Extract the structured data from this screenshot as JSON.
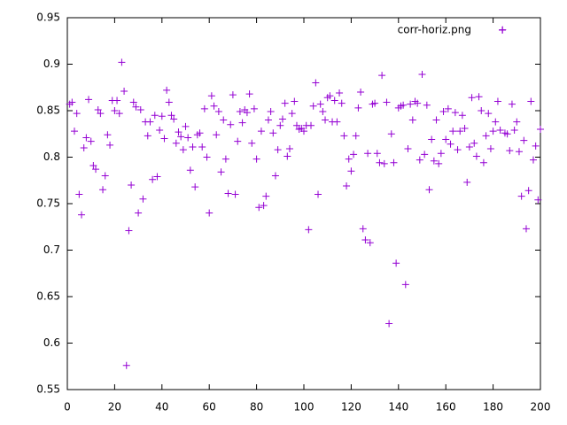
{
  "chart_data": {
    "type": "scatter",
    "legend_position": "top-right",
    "xlim": [
      0,
      200
    ],
    "ylim": [
      0.55,
      0.95
    ],
    "xticks": [
      0,
      20,
      40,
      60,
      80,
      100,
      120,
      140,
      160,
      180,
      200
    ],
    "yticks": [
      0.55,
      0.6,
      0.65,
      0.7,
      0.75,
      0.8,
      0.85,
      0.9,
      0.95
    ],
    "series": [
      {
        "name": "corr-horiz.png",
        "color": "#9400d3",
        "x": [
          1,
          2,
          3,
          4,
          5,
          6,
          7,
          8,
          9,
          10,
          11,
          12,
          13,
          14,
          15,
          16,
          17,
          18,
          19,
          20,
          21,
          22,
          23,
          24,
          25,
          26,
          27,
          28,
          29,
          30,
          31,
          32,
          33,
          34,
          35,
          36,
          37,
          38,
          39,
          40,
          41,
          42,
          43,
          44,
          45,
          46,
          47,
          48,
          49,
          50,
          51,
          52,
          53,
          54,
          55,
          56,
          57,
          58,
          59,
          60,
          61,
          62,
          63,
          64,
          65,
          66,
          67,
          68,
          69,
          70,
          71,
          72,
          73,
          74,
          75,
          76,
          77,
          78,
          79,
          80,
          81,
          82,
          83,
          84,
          85,
          86,
          87,
          88,
          89,
          90,
          91,
          92,
          93,
          94,
          95,
          96,
          97,
          98,
          99,
          100,
          101,
          102,
          103,
          104,
          105,
          106,
          107,
          108,
          109,
          110,
          111,
          112,
          113,
          114,
          115,
          116,
          117,
          118,
          119,
          120,
          121,
          122,
          123,
          124,
          125,
          126,
          127,
          128,
          129,
          130,
          131,
          132,
          133,
          134,
          135,
          136,
          137,
          138,
          139,
          140,
          141,
          142,
          143,
          144,
          145,
          146,
          147,
          148,
          149,
          150,
          151,
          152,
          153,
          154,
          155,
          156,
          157,
          158,
          159,
          160,
          161,
          162,
          163,
          164,
          165,
          166,
          167,
          168,
          169,
          170,
          171,
          172,
          173,
          174,
          175,
          176,
          177,
          178,
          179,
          180,
          181,
          182,
          183,
          184,
          185,
          186,
          187,
          188,
          189,
          190,
          191,
          192,
          193,
          194,
          195,
          196,
          197,
          198,
          199,
          200
        ],
        "values": [
          0.857,
          0.859,
          0.828,
          0.847,
          0.76,
          0.738,
          0.81,
          0.821,
          0.862,
          0.817,
          0.791,
          0.787,
          0.851,
          0.847,
          0.765,
          0.78,
          0.824,
          0.813,
          0.861,
          0.85,
          0.861,
          0.847,
          0.902,
          0.871,
          0.576,
          0.721,
          0.77,
          0.859,
          0.854,
          0.74,
          0.851,
          0.755,
          0.838,
          0.823,
          0.838,
          0.776,
          0.845,
          0.779,
          0.829,
          0.844,
          0.82,
          0.872,
          0.859,
          0.845,
          0.841,
          0.815,
          0.827,
          0.822,
          0.808,
          0.833,
          0.821,
          0.786,
          0.811,
          0.768,
          0.824,
          0.826,
          0.811,
          0.852,
          0.8,
          0.74,
          0.866,
          0.855,
          0.824,
          0.849,
          0.784,
          0.84,
          0.798,
          0.761,
          0.835,
          0.867,
          0.76,
          0.817,
          0.849,
          0.837,
          0.851,
          0.848,
          0.868,
          0.815,
          0.852,
          0.798,
          0.746,
          0.828,
          0.748,
          0.758,
          0.84,
          0.849,
          0.826,
          0.78,
          0.808,
          0.834,
          0.841,
          0.858,
          0.801,
          0.809,
          0.847,
          0.86,
          0.834,
          0.83,
          0.831,
          0.828,
          0.834,
          0.722,
          0.834,
          0.855,
          0.88,
          0.76,
          0.857,
          0.849,
          0.84,
          0.864,
          0.866,
          0.838,
          0.861,
          0.838,
          0.869,
          0.858,
          0.823,
          0.769,
          0.798,
          0.785,
          0.803,
          0.823,
          0.853,
          0.87,
          0.723,
          0.711,
          0.804,
          0.708,
          0.857,
          0.858,
          0.804,
          0.794,
          0.888,
          0.793,
          0.859,
          0.621,
          0.825,
          0.794,
          0.686,
          0.853,
          0.855,
          0.856,
          0.663,
          0.809,
          0.857,
          0.84,
          0.86,
          0.858,
          0.797,
          0.889,
          0.803,
          0.856,
          0.765,
          0.819,
          0.796,
          0.84,
          0.793,
          0.804,
          0.849,
          0.819,
          0.852,
          0.814,
          0.828,
          0.848,
          0.808,
          0.828,
          0.845,
          0.831,
          0.773,
          0.811,
          0.864,
          0.815,
          0.801,
          0.865,
          0.85,
          0.794,
          0.823,
          0.847,
          0.809,
          0.828,
          0.838,
          0.86,
          0.829,
          0.937,
          0.826,
          0.825,
          0.807,
          0.857,
          0.829,
          0.838,
          0.806,
          0.758,
          0.818,
          0.723,
          0.764,
          0.86,
          0.797,
          0.812,
          0.754,
          0.83
        ]
      }
    ]
  }
}
